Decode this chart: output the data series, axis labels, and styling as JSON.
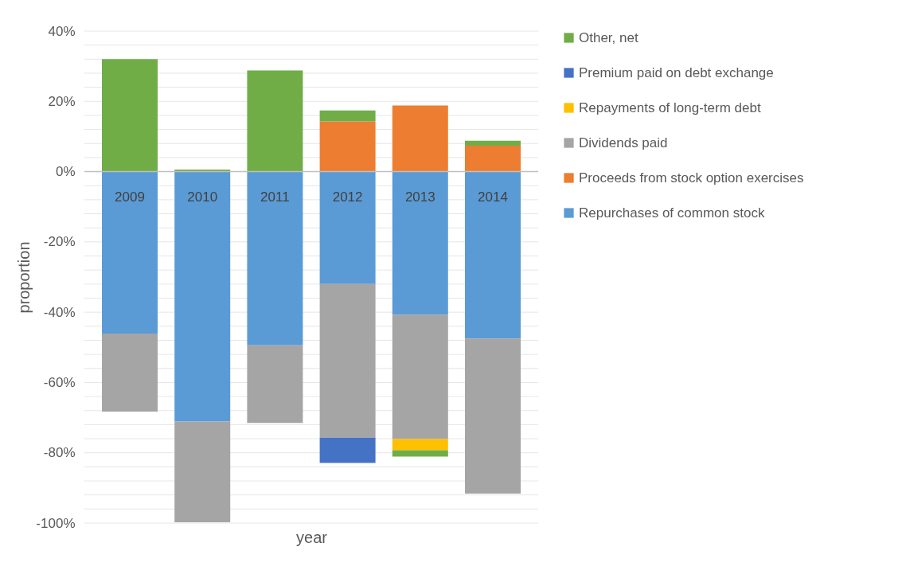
{
  "chart_data": {
    "type": "bar",
    "stacked": true,
    "xlabel": "year",
    "ylabel": "proportion",
    "categories": [
      "2009",
      "2010",
      "2011",
      "2012",
      "2013",
      "2014"
    ],
    "series": [
      {
        "name": "Repurchases of common stock",
        "color": "#5b9bd5",
        "values": [
          -46.1,
          -71.1,
          -49.4,
          -32.0,
          -40.7,
          -47.5
        ]
      },
      {
        "name": "Proceeds from stock option exercises",
        "color": "#ed7d31",
        "values": [
          0,
          0,
          0,
          14.3,
          18.8,
          7.4
        ]
      },
      {
        "name": "Dividends paid",
        "color": "#a5a5a5",
        "values": [
          -22.2,
          -28.7,
          -22.1,
          -43.7,
          -35.4,
          -44.1
        ]
      },
      {
        "name": "Repayments of long-term debt",
        "color": "#ffc000",
        "values": [
          0,
          0,
          0,
          0,
          -3.2,
          0
        ]
      },
      {
        "name": "Premium paid on debt exchange",
        "color": "#4472c4",
        "values": [
          0,
          0,
          0,
          -7.2,
          0,
          0
        ]
      },
      {
        "name": "Other, net",
        "color": "#70ad47",
        "values": [
          32.0,
          0.6,
          28.8,
          3.1,
          -1.8,
          1.4
        ]
      }
    ],
    "ylim": [
      -100,
      40
    ],
    "yticks": [
      {
        "value": -100,
        "label": "-100%"
      },
      {
        "value": -96,
        "label": null
      },
      {
        "value": -92,
        "label": null
      },
      {
        "value": -88,
        "label": null
      },
      {
        "value": -84,
        "label": null
      },
      {
        "value": -80,
        "label": "-80%"
      },
      {
        "value": -76,
        "label": null
      },
      {
        "value": -72,
        "label": null
      },
      {
        "value": -68,
        "label": null
      },
      {
        "value": -64,
        "label": null
      },
      {
        "value": -60,
        "label": "-60%"
      },
      {
        "value": -56,
        "label": null
      },
      {
        "value": -52,
        "label": null
      },
      {
        "value": -48,
        "label": null
      },
      {
        "value": -44,
        "label": null
      },
      {
        "value": -40,
        "label": "-40%"
      },
      {
        "value": -36,
        "label": null
      },
      {
        "value": -32,
        "label": null
      },
      {
        "value": -28,
        "label": null
      },
      {
        "value": -24,
        "label": null
      },
      {
        "value": -20,
        "label": "-20%"
      },
      {
        "value": -16,
        "label": null
      },
      {
        "value": -12,
        "label": null
      },
      {
        "value": -8,
        "label": null
      },
      {
        "value": -4,
        "label": null
      },
      {
        "value": 0,
        "label": "0%"
      },
      {
        "value": 4,
        "label": null
      },
      {
        "value": 8,
        "label": null
      },
      {
        "value": 12,
        "label": null
      },
      {
        "value": 16,
        "label": null
      },
      {
        "value": 20,
        "label": "20%"
      },
      {
        "value": 24,
        "label": null
      },
      {
        "value": 28,
        "label": null
      },
      {
        "value": 32,
        "label": null
      },
      {
        "value": 36,
        "label": null
      },
      {
        "value": 40,
        "label": "40%"
      }
    ],
    "grid": "y",
    "legend": "right"
  }
}
